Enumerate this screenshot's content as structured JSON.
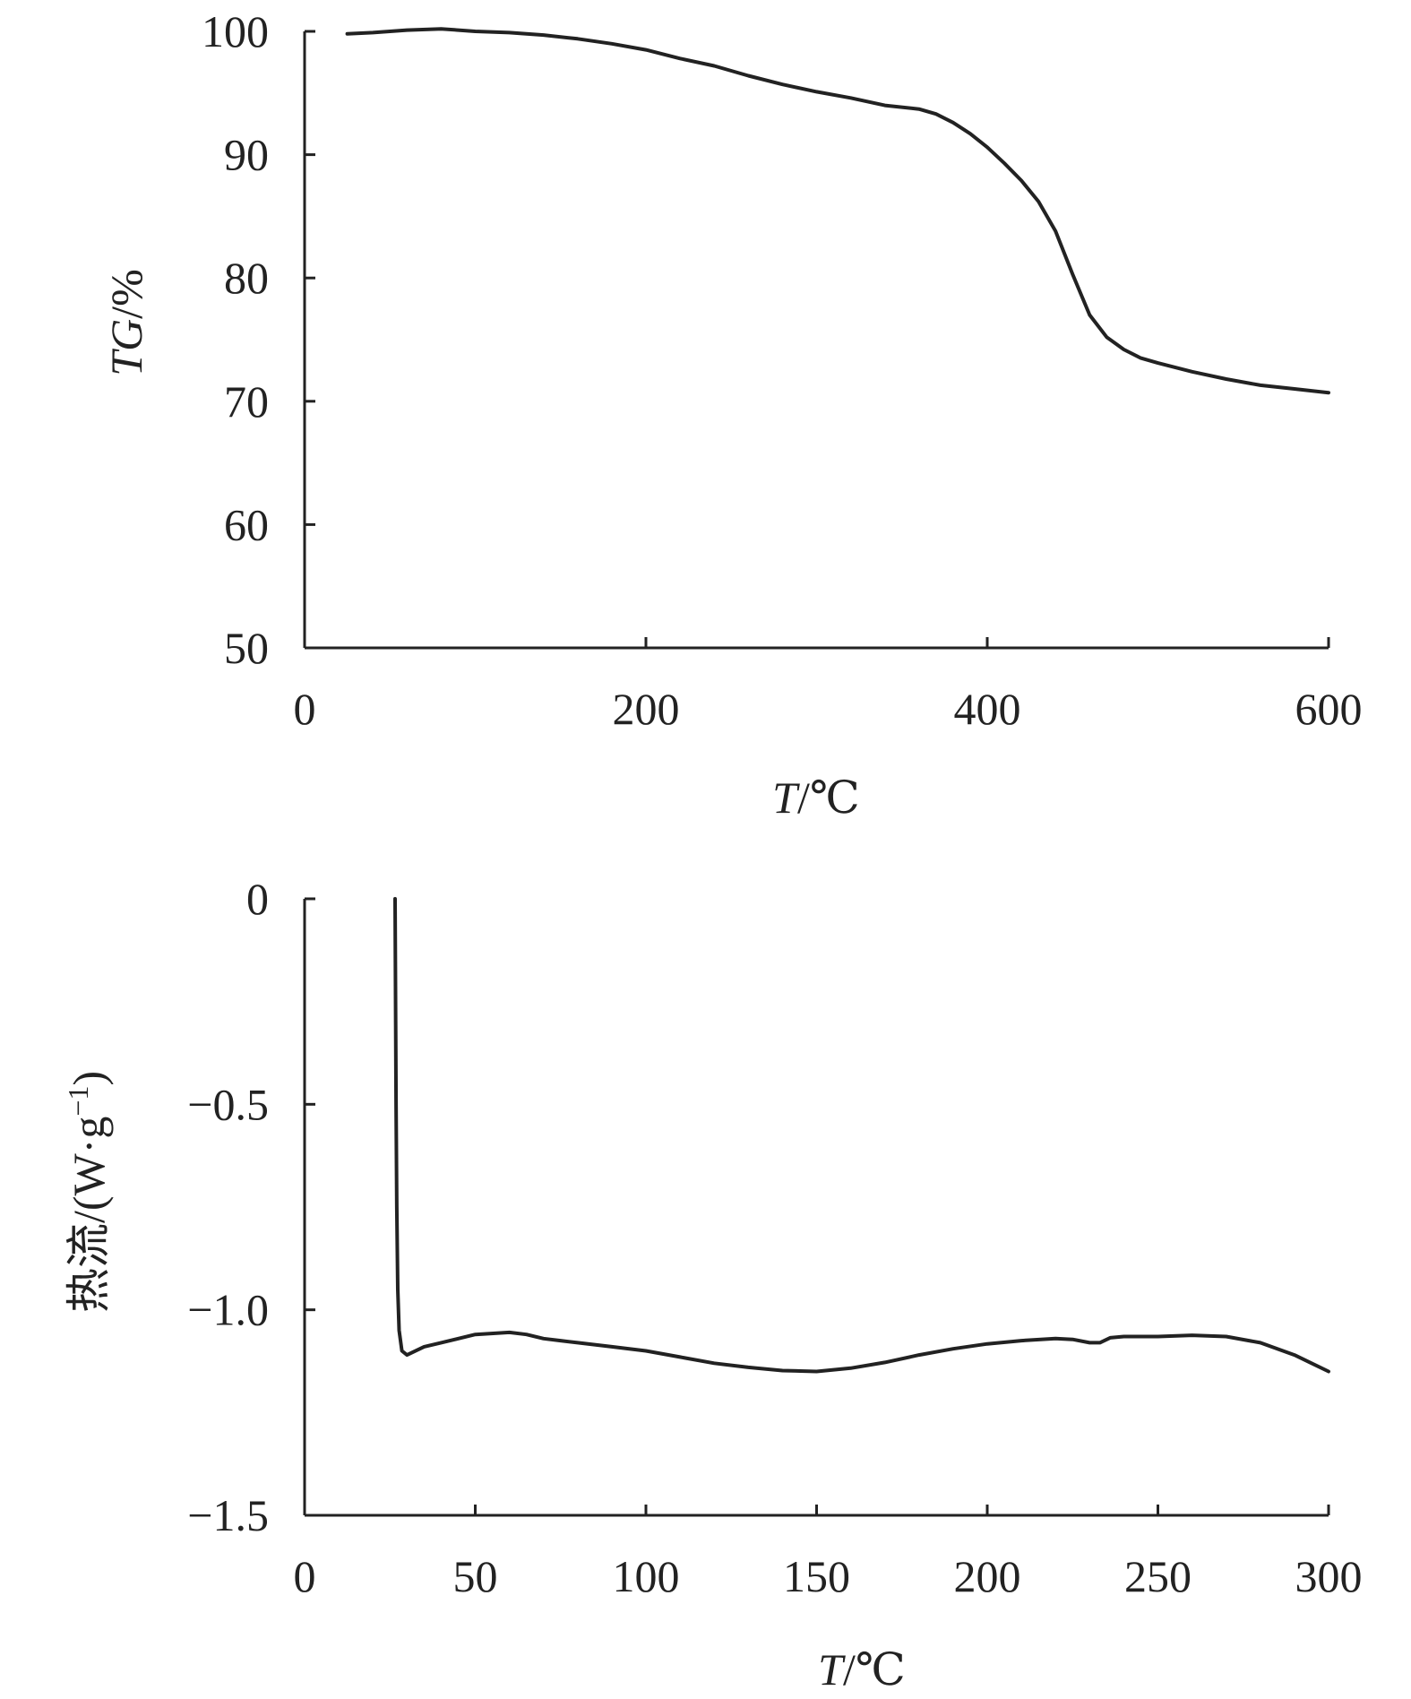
{
  "chart_data": [
    {
      "type": "line",
      "title": "",
      "xlabel_italic": "T",
      "xlabel_rest": "/℃",
      "ylabel_italic": "TG",
      "ylabel_rest": "/%",
      "xlim": [
        0,
        600
      ],
      "ylim": [
        50,
        100
      ],
      "xticks": [
        "0",
        "200",
        "400",
        "600"
      ],
      "yticks": [
        "50",
        "60",
        "70",
        "80",
        "90",
        "100"
      ],
      "grid": false,
      "series": [
        {
          "x": [
            25,
            40,
            60,
            80,
            100,
            120,
            140,
            160,
            180,
            200,
            220,
            240,
            260,
            280,
            300,
            320,
            340,
            360,
            370,
            380,
            390,
            400,
            410,
            420,
            430,
            440,
            450,
            460,
            470,
            480,
            490,
            500,
            520,
            540,
            560,
            580,
            600
          ],
          "y": [
            99.8,
            99.9,
            100.1,
            100.2,
            100.0,
            99.9,
            99.7,
            99.4,
            99.0,
            98.5,
            97.8,
            97.2,
            96.4,
            95.7,
            95.1,
            94.6,
            94.0,
            93.7,
            93.3,
            92.6,
            91.7,
            90.6,
            89.3,
            87.9,
            86.2,
            83.8,
            80.3,
            77.0,
            75.2,
            74.2,
            73.5,
            73.1,
            72.4,
            71.8,
            71.3,
            71.0,
            70.7
          ]
        }
      ]
    },
    {
      "type": "line",
      "title": "",
      "xlabel_italic": "T",
      "xlabel_rest": "/℃",
      "ylabel_prefix": "热流/(W·g",
      "ylabel_sup": "−1",
      "ylabel_suffix": ")",
      "xlim": [
        0,
        300
      ],
      "ylim": [
        -1.5,
        0
      ],
      "xticks": [
        "0",
        "50",
        "100",
        "150",
        "200",
        "250",
        "300"
      ],
      "yticks": [
        "−1.5",
        "−1.0",
        "−0.5",
        "0"
      ],
      "grid": false,
      "series": [
        {
          "x": [
            26.5,
            26.8,
            27.0,
            27.3,
            27.7,
            28.5,
            30,
            35,
            40,
            50,
            60,
            65,
            70,
            75,
            80,
            90,
            100,
            110,
            120,
            130,
            140,
            150,
            160,
            170,
            180,
            190,
            200,
            210,
            220,
            225,
            230,
            233,
            236,
            240,
            250,
            260,
            270,
            280,
            290,
            300
          ],
          "y": [
            0.0,
            -0.5,
            -0.75,
            -0.95,
            -1.05,
            -1.1,
            -1.11,
            -1.09,
            -1.08,
            -1.06,
            -1.055,
            -1.06,
            -1.07,
            -1.075,
            -1.08,
            -1.09,
            -1.1,
            -1.115,
            -1.13,
            -1.14,
            -1.148,
            -1.15,
            -1.142,
            -1.128,
            -1.11,
            -1.095,
            -1.083,
            -1.075,
            -1.07,
            -1.072,
            -1.08,
            -1.08,
            -1.068,
            -1.065,
            -1.065,
            -1.062,
            -1.065,
            -1.08,
            -1.11,
            -1.15
          ]
        }
      ]
    }
  ]
}
